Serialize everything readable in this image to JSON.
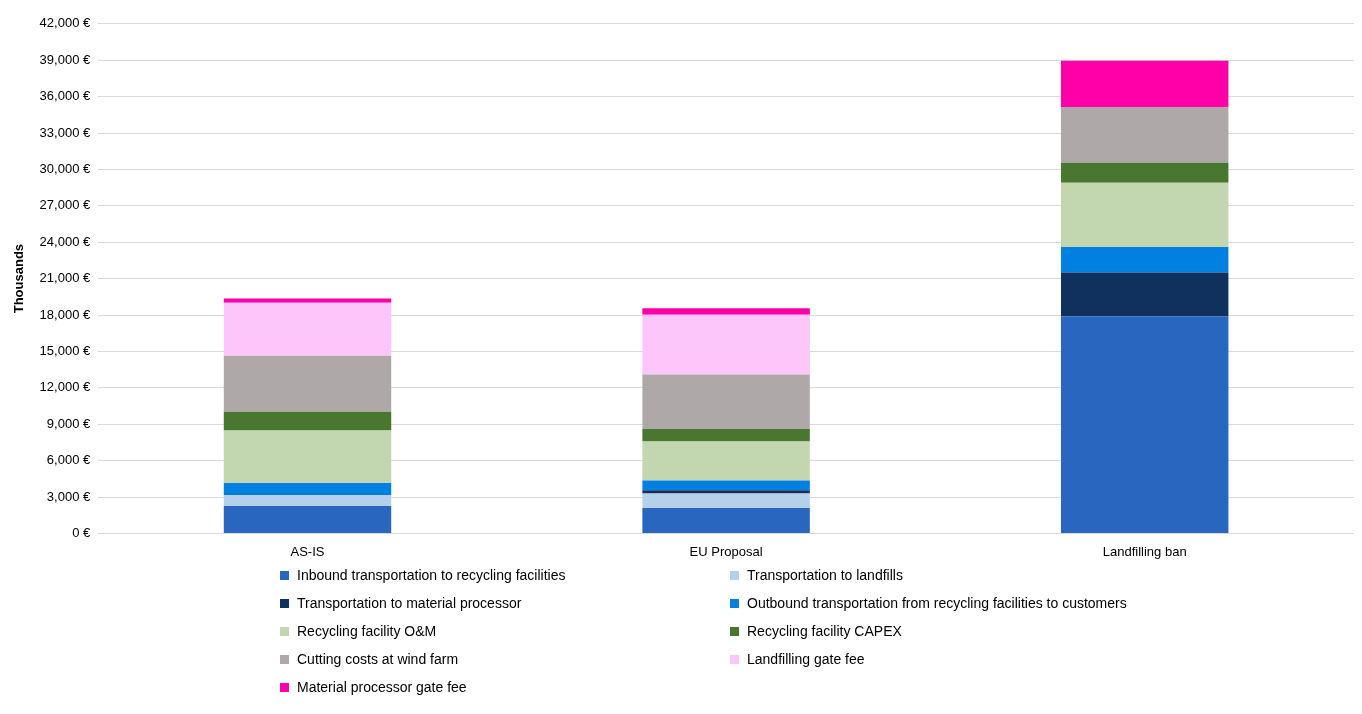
{
  "chart_data": {
    "type": "bar",
    "stacked": true,
    "ylabel": "Thousands",
    "categories": [
      "AS-IS",
      "EU Proposal",
      "Landfilling ban"
    ],
    "series": [
      {
        "name": "Inbound transportation to recycling facilities",
        "color": "#2966c0",
        "values": [
          2250,
          2100,
          17900
        ]
      },
      {
        "name": "Transportation to landfills",
        "color": "#b4d0ea",
        "values": [
          920,
          1180,
          0
        ]
      },
      {
        "name": "Transportation to material processor",
        "color": "#10305e",
        "values": [
          0,
          280,
          3600
        ]
      },
      {
        "name": "Outbound transportation from recycling facilities to customers",
        "color": "#0080e0",
        "values": [
          980,
          790,
          2100
        ]
      },
      {
        "name": "Recycling facility O&M",
        "color": "#c2d6b0",
        "values": [
          4330,
          3220,
          5300
        ]
      },
      {
        "name": "Recycling facility CAPEX",
        "color": "#4a7730",
        "values": [
          1540,
          1040,
          1650
        ]
      },
      {
        "name": "Cutting costs at wind farm",
        "color": "#aea8a8",
        "values": [
          4620,
          4480,
          4600
        ]
      },
      {
        "name": "Landfilling gate fee",
        "color": "#fdc6fa",
        "values": [
          4370,
          4930,
          0
        ]
      },
      {
        "name": "Material processor gate fee",
        "color": "#ff00a8",
        "values": [
          340,
          530,
          3800
        ]
      }
    ],
    "ylim": [
      0,
      42000
    ],
    "yticks": [
      {
        "value": 0,
        "label": "0 €"
      },
      {
        "value": 3000,
        "label": "3,000 €"
      },
      {
        "value": 6000,
        "label": "6,000 €"
      },
      {
        "value": 9000,
        "label": "9,000 €"
      },
      {
        "value": 12000,
        "label": "12,000 €"
      },
      {
        "value": 15000,
        "label": "15,000 €"
      },
      {
        "value": 18000,
        "label": "18,000 €"
      },
      {
        "value": 21000,
        "label": "21,000 €"
      },
      {
        "value": 24000,
        "label": "24,000 €"
      },
      {
        "value": 27000,
        "label": "27,000 €"
      },
      {
        "value": 30000,
        "label": "30,000 €"
      },
      {
        "value": 33000,
        "label": "33,000 €"
      },
      {
        "value": 36000,
        "label": "36,000 €"
      },
      {
        "value": 39000,
        "label": "39,000 €"
      },
      {
        "value": 42000,
        "label": "42,000 €"
      }
    ],
    "grid": "y",
    "legend": "bottom"
  }
}
